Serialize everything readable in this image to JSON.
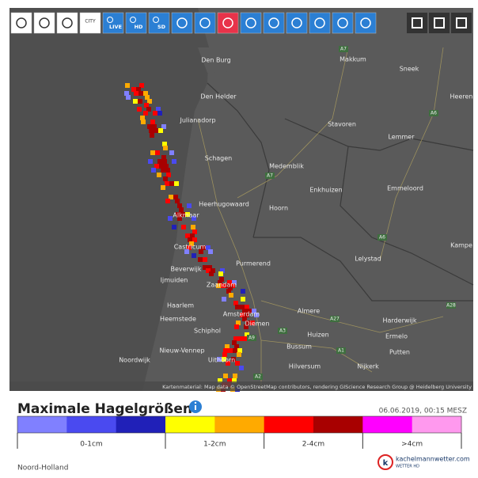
{
  "toolbar": {
    "labels": [
      "CITY",
      "LIVE",
      "HD",
      "SD"
    ]
  },
  "map": {
    "places": [
      "Den Burg",
      "Makkum",
      "Sneek",
      "Den Helder",
      "Heeren",
      "Julianadorp",
      "Stavoren",
      "Lemmer",
      "Schagen",
      "Medemblik",
      "Enkhuizen",
      "Emmeloord",
      "Heerhugowaard",
      "Hoorn",
      "Alkmaar",
      "Castricum",
      "Lelystad",
      "Kampe",
      "Purmerend",
      "Beverwijk",
      "Ijmuiden",
      "Zaandam",
      "Haarlem",
      "Almere",
      "Harderwijk",
      "Heemstede",
      "Amsterdam",
      "Diemen",
      "Schiphol",
      "Huizen",
      "Ermelo",
      "Nieuw-Vennep",
      "Bussum",
      "Putten",
      "Noordwijk",
      "Uithoorn",
      "Hilversum",
      "Nijkerk"
    ],
    "roads": [
      "A7",
      "A6",
      "A7",
      "A6",
      "A28",
      "A27",
      "A9",
      "A1",
      "A2",
      "A3"
    ],
    "attribution": "Kartenmaterial: Map data © OpenStreetMap contributors, rendering GIScience Research Group @ Heidelberg University"
  },
  "legend": {
    "title": "Maximale Hagelgrößen",
    "timestamp": "06.06.2019, 00:15 MESZ",
    "colors": [
      "#8080ff",
      "#4a4af0",
      "#2020b8",
      "#ffff00",
      "#ffaa00",
      "#ff0000",
      "#a80000",
      "#ff00ff",
      "#ff99ee"
    ],
    "ranges": [
      "0-1cm",
      "1-2cm",
      "2-4cm",
      ">4cm"
    ]
  },
  "footer": {
    "region": "Noord-Holland",
    "brand": "kachelmannwetter.com",
    "brand_sub": "WETTER HD"
  }
}
